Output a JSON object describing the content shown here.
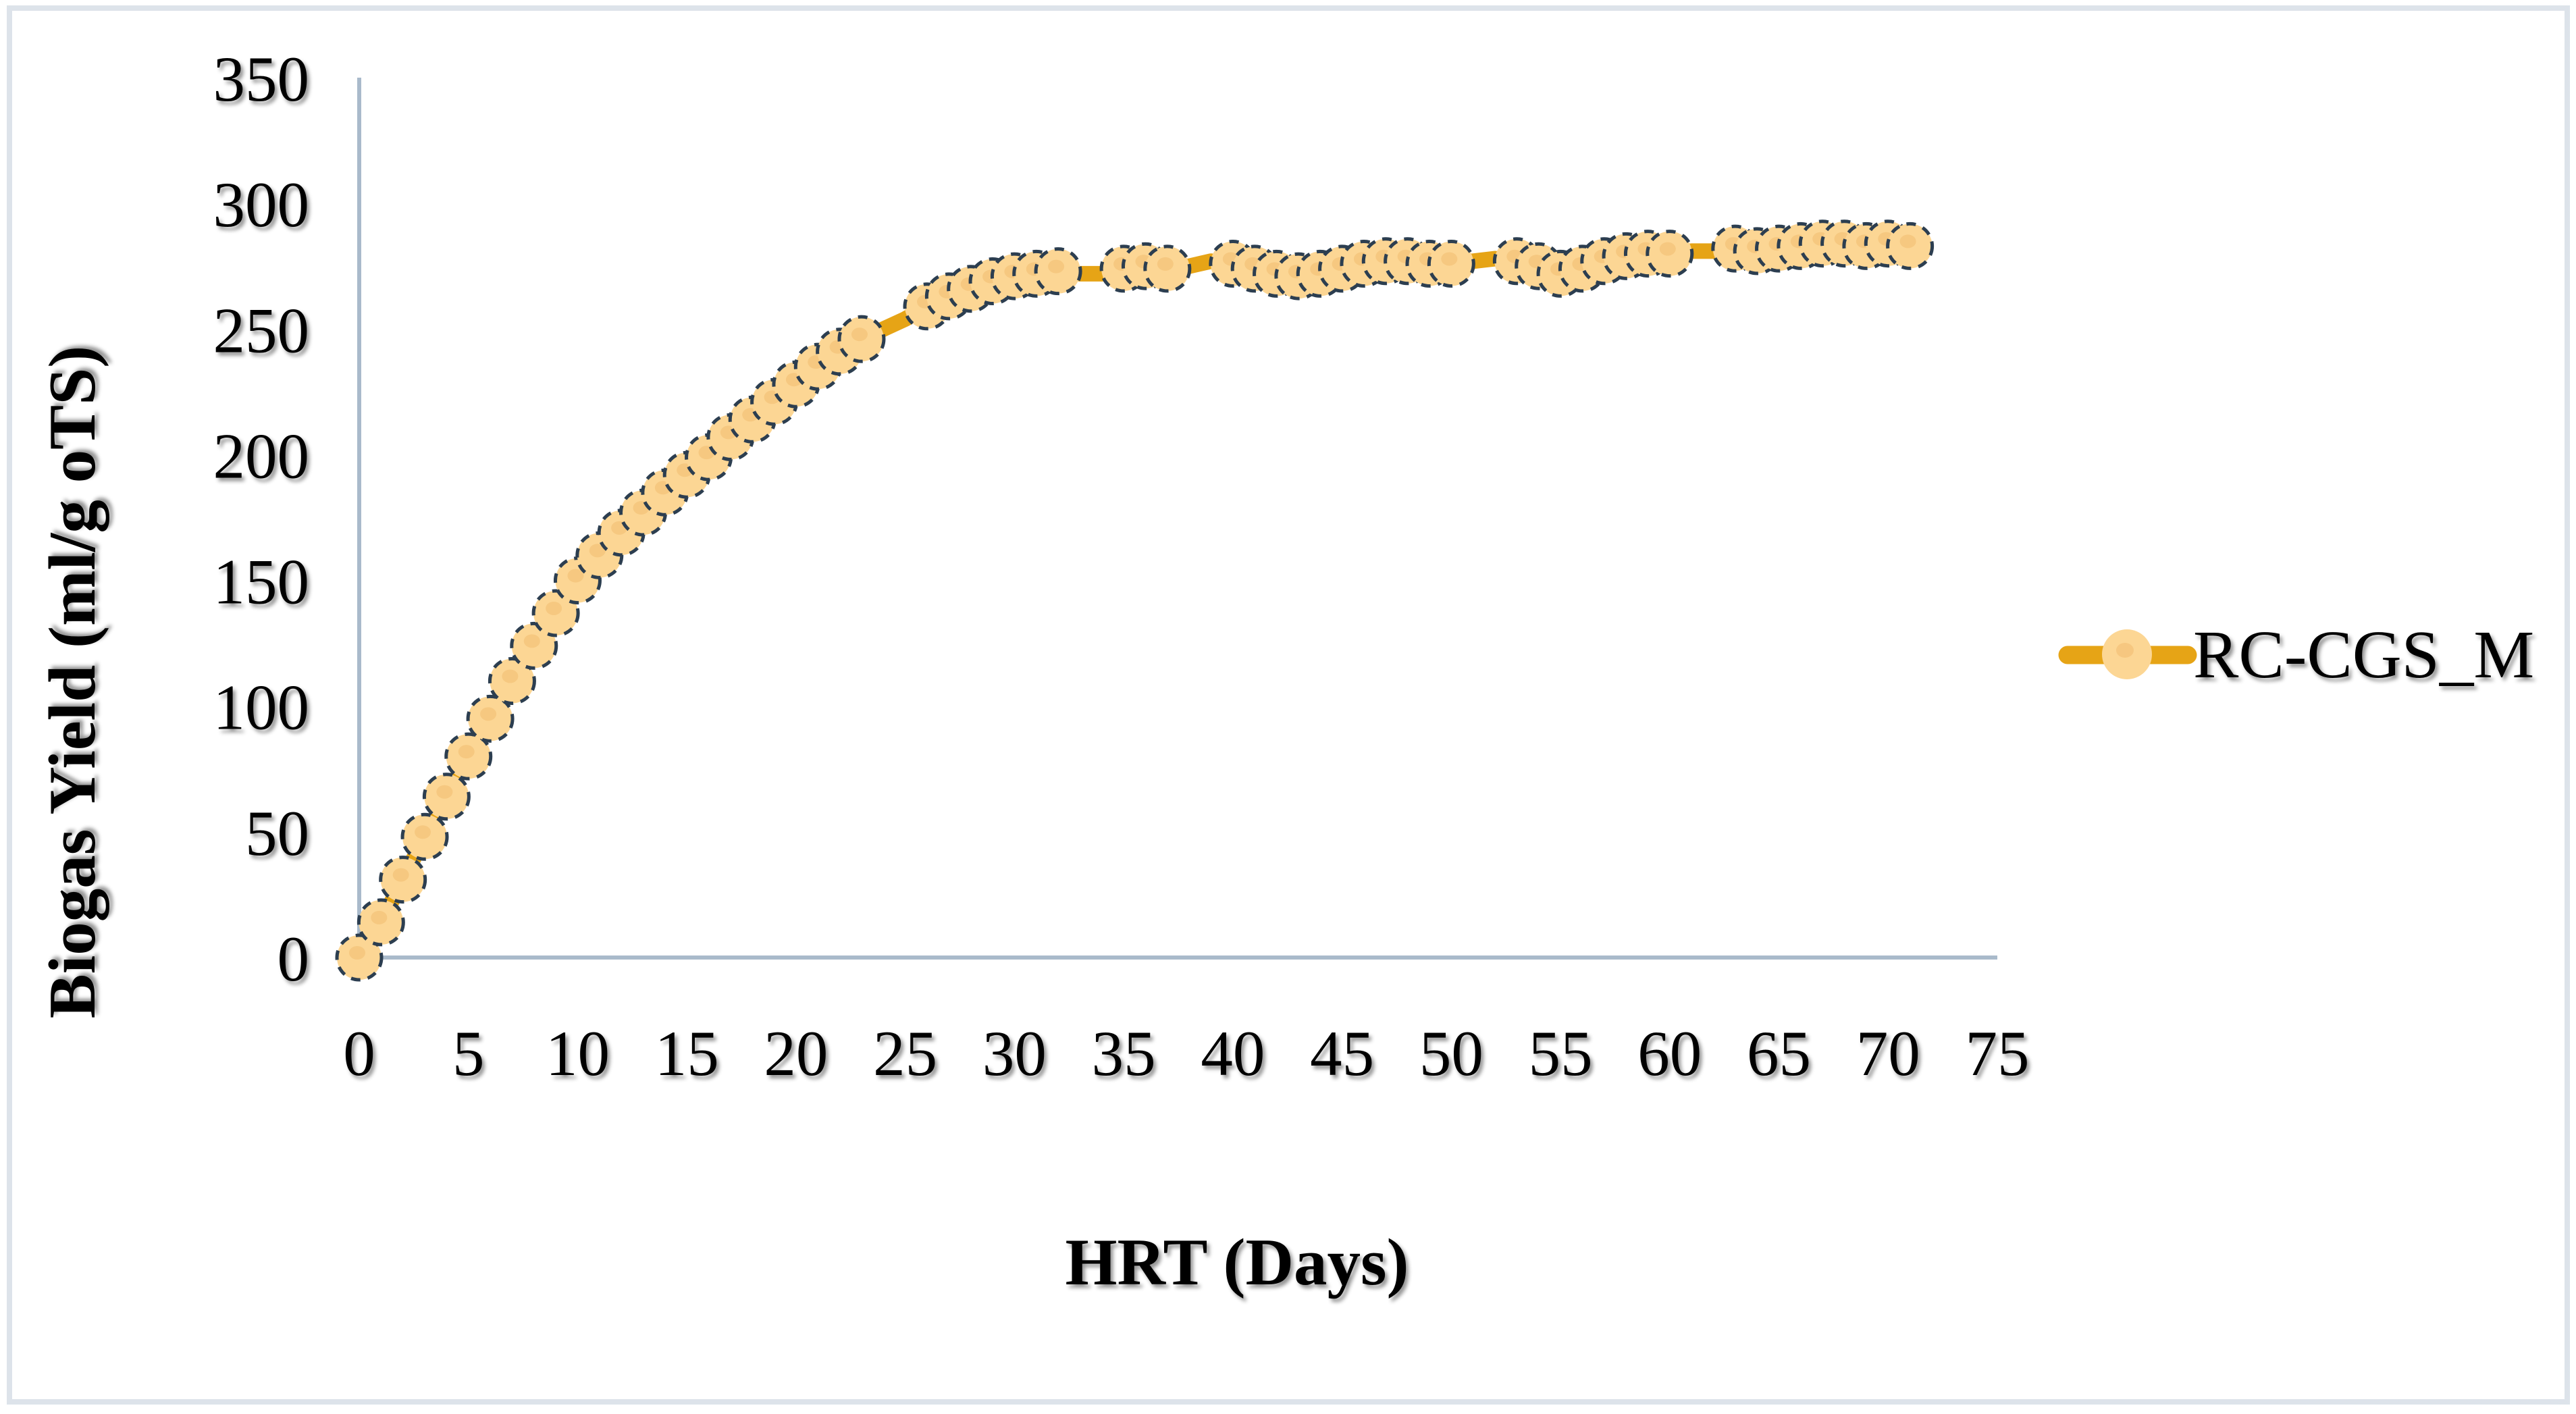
{
  "chart_data": {
    "type": "line",
    "title": "",
    "xlabel": "HRT (Days)",
    "ylabel": "Biogas Yield (ml/g oTS)",
    "xlim": [
      0,
      75
    ],
    "ylim": [
      0,
      350
    ],
    "x_ticks": [
      0,
      5,
      10,
      15,
      20,
      25,
      30,
      35,
      40,
      45,
      50,
      55,
      60,
      65,
      70,
      75
    ],
    "y_ticks": [
      0,
      50,
      100,
      150,
      200,
      250,
      300,
      350
    ],
    "grid": false,
    "legend_position": "right",
    "series": [
      {
        "name": "RC-CGS_M",
        "x": [
          0,
          1,
          2,
          3,
          4,
          5,
          6,
          7,
          8,
          9,
          10,
          11,
          12,
          13,
          14,
          15,
          16,
          17,
          18,
          19,
          20,
          21,
          22,
          23,
          24,
          25,
          26,
          27,
          28,
          29,
          30,
          31,
          32,
          33,
          34,
          35,
          36,
          37,
          38,
          39,
          40,
          41,
          42,
          43,
          44,
          45,
          46,
          47,
          48,
          49,
          50,
          51,
          52,
          53,
          54,
          55,
          56,
          57,
          58,
          59,
          60,
          61,
          62,
          63,
          64,
          65,
          66,
          67,
          68,
          69,
          70,
          71
        ],
        "values": [
          0,
          14,
          31,
          48,
          64,
          80,
          95,
          110,
          124,
          137,
          150,
          160,
          169,
          177,
          185,
          192,
          199,
          207,
          214,
          221,
          228,
          235,
          241,
          246,
          250,
          254,
          259,
          263,
          266,
          269,
          271,
          272,
          273,
          272,
          272,
          274,
          275,
          274,
          275,
          277,
          276,
          274,
          272,
          271,
          272,
          274,
          276,
          277,
          277,
          276,
          276,
          277,
          278,
          277,
          275,
          272,
          274,
          277,
          279,
          280,
          280,
          281,
          281,
          282,
          281,
          282,
          283,
          284,
          284,
          283,
          284,
          283
        ],
        "marker": "circle",
        "marker_gap_days": [
          24,
          25,
          33,
          34,
          38,
          39,
          51,
          52,
          61,
          62
        ],
        "line_color": "#E6A416",
        "marker_fill": "#FCD694",
        "marker_inner_dot_color": "#F5C57D",
        "marker_border_color": "#2C3E50",
        "marker_border_style": "dashed"
      }
    ]
  },
  "colors": {
    "axis_line": "#A9BACB",
    "text": "#000000",
    "figure_border": "#DDE3EA",
    "background": "#FFFFFF"
  }
}
